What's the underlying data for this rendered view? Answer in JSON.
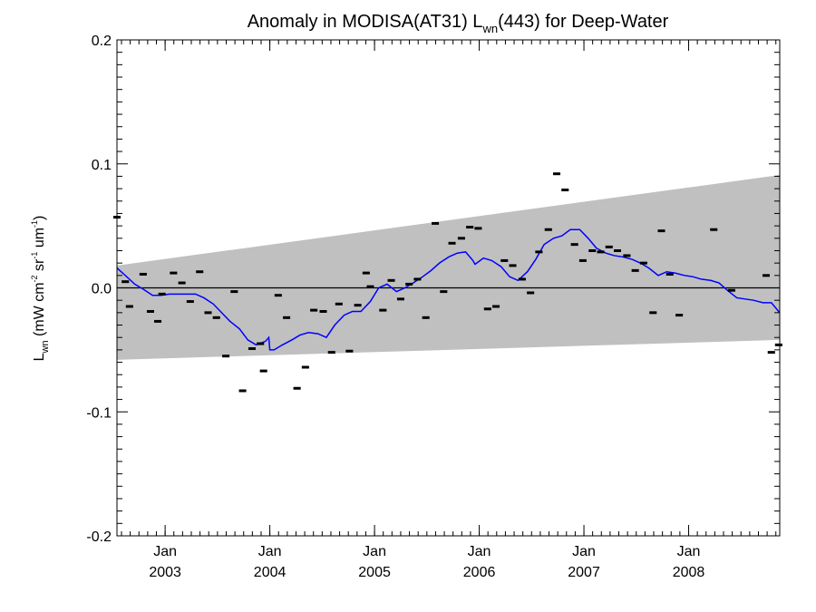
{
  "chart_data": {
    "type": "scatter",
    "title": {
      "prefix": "Anomaly in MODISA(AT31) L",
      "sub": "wn",
      "suffix": "(443) for Deep-Water"
    },
    "ylabel": {
      "base": "L",
      "base_sub": "wn",
      "open": " (mW cm",
      "sup1": "-2",
      "mid1": " sr",
      "sup2": "-1",
      "mid2": " um",
      "sup3": "-1",
      "close": ")"
    },
    "xlim": [
      2002.54,
      2008.87
    ],
    "ylim": [
      -0.2,
      0.2
    ],
    "x_major_ticks": [
      {
        "x": 2003.0,
        "month": "Jan",
        "year": "2003"
      },
      {
        "x": 2004.0,
        "month": "Jan",
        "year": "2004"
      },
      {
        "x": 2005.0,
        "month": "Jan",
        "year": "2005"
      },
      {
        "x": 2006.0,
        "month": "Jan",
        "year": "2006"
      },
      {
        "x": 2007.0,
        "month": "Jan",
        "year": "2007"
      },
      {
        "x": 2008.0,
        "month": "Jan",
        "year": "2008"
      }
    ],
    "y_major_ticks": [
      {
        "value": 0.2,
        "label": "0.2"
      },
      {
        "value": 0.1,
        "label": "0.1"
      },
      {
        "value": 0.0,
        "label": "0.0"
      },
      {
        "value": -0.1,
        "label": "-0.1"
      },
      {
        "value": -0.2,
        "label": "-0.2"
      }
    ],
    "y_minor_step": 0.01,
    "x_minor_step": 0.08333,
    "uncertainty_band": {
      "color": "#c0c0c0",
      "upper": [
        [
          2002.54,
          0.018
        ],
        [
          2008.87,
          0.091
        ]
      ],
      "lower": [
        [
          2002.54,
          -0.058
        ],
        [
          2008.87,
          -0.042
        ]
      ]
    },
    "zero_line": {
      "y": 0.0,
      "color": "#000000"
    },
    "trend_line": {
      "color": "#0000ff",
      "points": [
        [
          2002.54,
          0.016
        ],
        [
          2002.62,
          0.01
        ],
        [
          2002.71,
          0.003
        ],
        [
          2002.79,
          -0.001
        ],
        [
          2002.88,
          -0.006
        ],
        [
          2002.96,
          -0.006
        ],
        [
          2003.04,
          -0.005
        ],
        [
          2003.12,
          -0.005
        ],
        [
          2003.21,
          -0.005
        ],
        [
          2003.29,
          -0.005
        ],
        [
          2003.37,
          -0.008
        ],
        [
          2003.46,
          -0.013
        ],
        [
          2003.54,
          -0.02
        ],
        [
          2003.62,
          -0.027
        ],
        [
          2003.71,
          -0.033
        ],
        [
          2003.79,
          -0.042
        ],
        [
          2003.87,
          -0.046
        ],
        [
          2003.96,
          -0.043
        ],
        [
          2003.99,
          -0.04
        ],
        [
          2004.0,
          -0.05
        ],
        [
          2004.04,
          -0.05
        ],
        [
          2004.12,
          -0.046
        ],
        [
          2004.21,
          -0.042
        ],
        [
          2004.29,
          -0.038
        ],
        [
          2004.37,
          -0.036
        ],
        [
          2004.46,
          -0.037
        ],
        [
          2004.54,
          -0.04
        ],
        [
          2004.62,
          -0.03
        ],
        [
          2004.71,
          -0.022
        ],
        [
          2004.79,
          -0.019
        ],
        [
          2004.87,
          -0.019
        ],
        [
          2004.96,
          -0.011
        ],
        [
          2005.04,
          0.0
        ],
        [
          2005.12,
          0.003
        ],
        [
          2005.21,
          -0.003
        ],
        [
          2005.29,
          0.0
        ],
        [
          2005.37,
          0.004
        ],
        [
          2005.46,
          0.009
        ],
        [
          2005.54,
          0.014
        ],
        [
          2005.62,
          0.02
        ],
        [
          2005.71,
          0.025
        ],
        [
          2005.79,
          0.028
        ],
        [
          2005.87,
          0.029
        ],
        [
          2005.94,
          0.022
        ],
        [
          2005.96,
          0.019
        ],
        [
          2006.04,
          0.024
        ],
        [
          2006.12,
          0.022
        ],
        [
          2006.21,
          0.017
        ],
        [
          2006.29,
          0.009
        ],
        [
          2006.37,
          0.006
        ],
        [
          2006.46,
          0.013
        ],
        [
          2006.54,
          0.023
        ],
        [
          2006.62,
          0.035
        ],
        [
          2006.71,
          0.04
        ],
        [
          2006.79,
          0.042
        ],
        [
          2006.87,
          0.047
        ],
        [
          2006.96,
          0.047
        ],
        [
          2007.04,
          0.04
        ],
        [
          2007.12,
          0.032
        ],
        [
          2007.21,
          0.028
        ],
        [
          2007.29,
          0.026
        ],
        [
          2007.37,
          0.025
        ],
        [
          2007.46,
          0.023
        ],
        [
          2007.54,
          0.02
        ],
        [
          2007.62,
          0.016
        ],
        [
          2007.71,
          0.01
        ],
        [
          2007.79,
          0.013
        ],
        [
          2007.87,
          0.012
        ],
        [
          2007.96,
          0.01
        ],
        [
          2008.04,
          0.009
        ],
        [
          2008.12,
          0.007
        ],
        [
          2008.21,
          0.006
        ],
        [
          2008.29,
          0.004
        ],
        [
          2008.37,
          -0.002
        ],
        [
          2008.46,
          -0.008
        ],
        [
          2008.54,
          -0.009
        ],
        [
          2008.62,
          -0.01
        ],
        [
          2008.71,
          -0.012
        ],
        [
          2008.79,
          -0.012
        ],
        [
          2008.87,
          -0.02
        ]
      ]
    },
    "points": [
      [
        2002.54,
        0.057
      ],
      [
        2002.62,
        0.005
      ],
      [
        2002.66,
        -0.015
      ],
      [
        2002.79,
        0.011
      ],
      [
        2002.86,
        -0.019
      ],
      [
        2002.93,
        -0.027
      ],
      [
        2002.97,
        -0.005
      ],
      [
        2003.08,
        0.012
      ],
      [
        2003.16,
        0.004
      ],
      [
        2003.24,
        -0.011
      ],
      [
        2003.33,
        0.013
      ],
      [
        2003.41,
        -0.02
      ],
      [
        2003.49,
        -0.024
      ],
      [
        2003.58,
        -0.055
      ],
      [
        2003.66,
        -0.003
      ],
      [
        2003.74,
        -0.083
      ],
      [
        2003.83,
        -0.049
      ],
      [
        2003.91,
        -0.045
      ],
      [
        2003.94,
        -0.067
      ],
      [
        2004.08,
        -0.006
      ],
      [
        2004.16,
        -0.024
      ],
      [
        2004.26,
        -0.081
      ],
      [
        2004.34,
        -0.064
      ],
      [
        2004.42,
        -0.018
      ],
      [
        2004.51,
        -0.019
      ],
      [
        2004.59,
        -0.052
      ],
      [
        2004.66,
        -0.013
      ],
      [
        2004.76,
        -0.051
      ],
      [
        2004.84,
        -0.014
      ],
      [
        2004.92,
        0.012
      ],
      [
        2004.96,
        0.001
      ],
      [
        2005.08,
        -0.018
      ],
      [
        2005.16,
        0.006
      ],
      [
        2005.25,
        -0.009
      ],
      [
        2005.33,
        0.003
      ],
      [
        2005.41,
        0.007
      ],
      [
        2005.49,
        -0.024
      ],
      [
        2005.58,
        0.052
      ],
      [
        2005.66,
        -0.003
      ],
      [
        2005.74,
        0.036
      ],
      [
        2005.83,
        0.04
      ],
      [
        2005.91,
        0.049
      ],
      [
        2005.99,
        0.048
      ],
      [
        2006.08,
        -0.017
      ],
      [
        2006.16,
        -0.015
      ],
      [
        2006.24,
        0.022
      ],
      [
        2006.32,
        0.018
      ],
      [
        2006.41,
        0.007
      ],
      [
        2006.49,
        -0.004
      ],
      [
        2006.57,
        0.029
      ],
      [
        2006.66,
        0.047
      ],
      [
        2006.74,
        0.092
      ],
      [
        2006.82,
        0.079
      ],
      [
        2006.91,
        0.035
      ],
      [
        2006.99,
        0.022
      ],
      [
        2007.08,
        0.03
      ],
      [
        2007.16,
        0.029
      ],
      [
        2007.24,
        0.033
      ],
      [
        2007.32,
        0.03
      ],
      [
        2007.41,
        0.026
      ],
      [
        2007.49,
        0.014
      ],
      [
        2007.57,
        0.02
      ],
      [
        2007.66,
        -0.02
      ],
      [
        2007.74,
        0.046
      ],
      [
        2007.82,
        0.011
      ],
      [
        2007.91,
        -0.022
      ],
      [
        2008.24,
        0.047
      ],
      [
        2008.41,
        -0.002
      ],
      [
        2008.74,
        0.01
      ],
      [
        2008.79,
        -0.052
      ],
      [
        2008.86,
        -0.046
      ]
    ]
  }
}
